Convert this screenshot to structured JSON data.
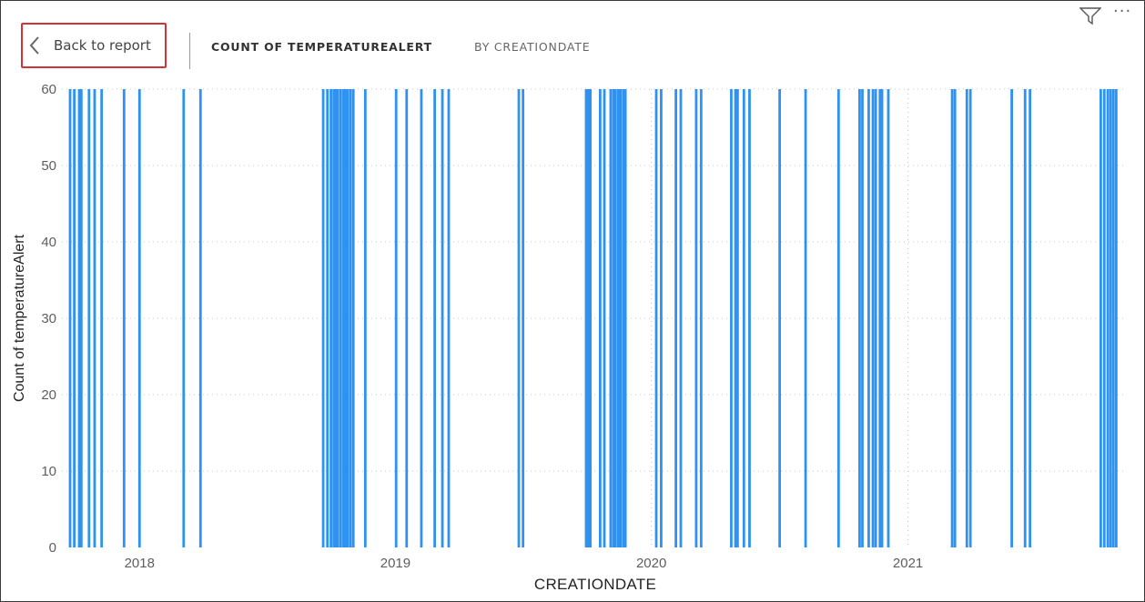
{
  "header": {
    "back_label": "Back to report",
    "title": "COUNT OF TEMPERATUREALERT",
    "subtitle": "BY CREATIONDATE"
  },
  "icons": {
    "back": "chevron-left-icon",
    "filter": "filter-icon",
    "more": "more-options-icon"
  },
  "colors": {
    "bar": "#2f92f0",
    "back_border": "#d13438"
  },
  "chart_data": {
    "type": "bar",
    "title": "COUNT OF TEMPERATUREALERT BY CREATIONDATE",
    "xlabel": "CREATIONDATE",
    "ylabel": "Count of temperatureAlert",
    "ylim": [
      0,
      60
    ],
    "yticks": [
      0,
      10,
      20,
      30,
      40,
      50,
      60
    ],
    "xticks": [
      "2018",
      "2019",
      "2020",
      "2021"
    ],
    "xlim": [
      "2017-09-24",
      "2021-10-31"
    ],
    "grid": true,
    "series": [
      {
        "values_date": [
          "2017-09-24",
          "2017-09-30",
          "2017-10-07",
          "2017-10-10",
          "2017-10-21",
          "2017-10-29",
          "2017-11-08",
          "2017-12-10",
          "2018-01-01",
          "2018-03-05",
          "2018-03-29",
          "2018-09-20",
          "2018-09-26",
          "2018-10-01",
          "2018-10-05",
          "2018-10-08",
          "2018-10-11",
          "2018-10-15",
          "2018-10-19",
          "2018-10-22",
          "2018-10-25",
          "2018-10-29",
          "2018-11-02",
          "2018-11-19",
          "2019-01-02",
          "2019-01-17",
          "2019-02-07",
          "2019-02-26",
          "2019-03-09",
          "2019-03-18",
          "2019-06-26",
          "2019-07-02",
          "2019-09-30",
          "2019-10-03",
          "2019-10-06",
          "2019-10-20",
          "2019-10-26",
          "2019-11-04",
          "2019-11-08",
          "2019-11-11",
          "2019-11-15",
          "2019-11-18",
          "2019-11-22",
          "2019-11-25",
          "2020-01-08",
          "2020-01-15",
          "2020-02-05",
          "2020-02-12",
          "2020-03-05",
          "2020-03-12",
          "2020-04-24",
          "2020-04-30",
          "2020-05-03",
          "2020-05-12",
          "2020-05-20",
          "2020-07-02",
          "2020-08-08",
          "2020-09-24",
          "2020-10-24",
          "2020-10-28",
          "2020-11-06",
          "2020-11-12",
          "2020-11-16",
          "2020-11-22",
          "2020-11-25",
          "2020-12-04",
          "2021-03-05",
          "2021-03-09",
          "2021-03-26",
          "2021-03-31",
          "2021-05-29",
          "2021-06-17",
          "2021-06-24",
          "2021-10-03",
          "2021-10-08",
          "2021-10-13",
          "2021-10-17",
          "2021-10-21",
          "2021-10-25"
        ],
        "value": 60
      }
    ]
  }
}
